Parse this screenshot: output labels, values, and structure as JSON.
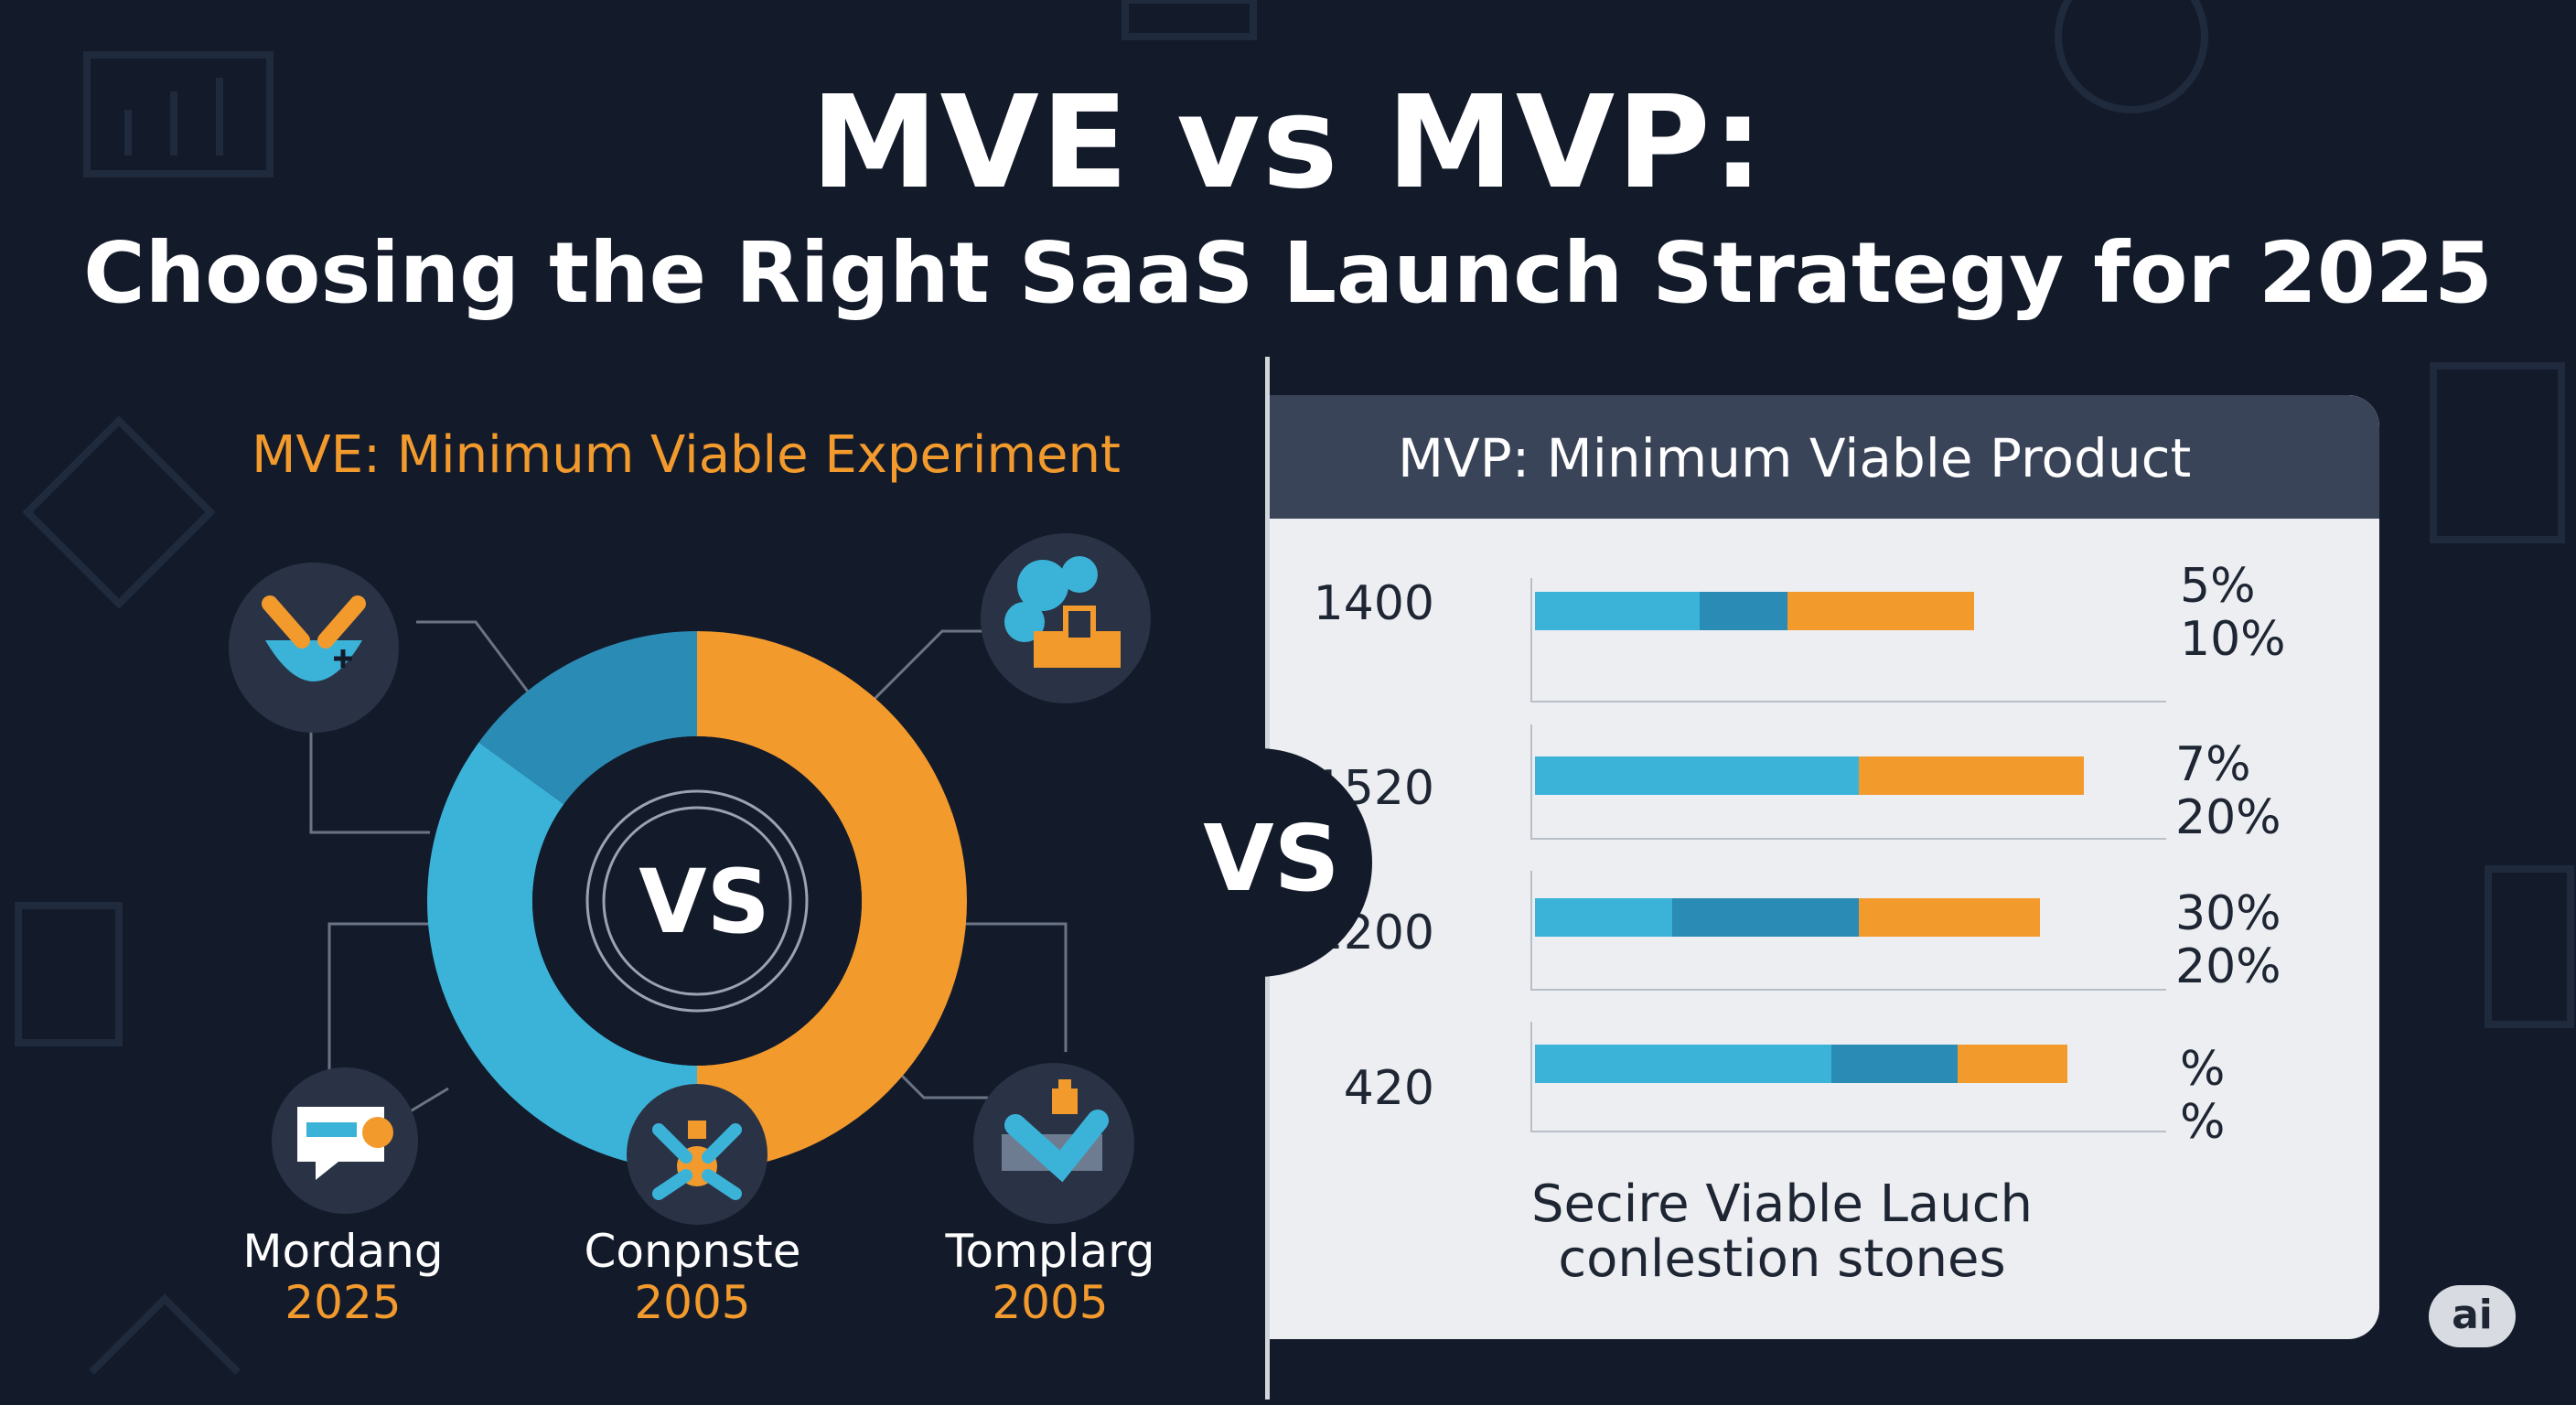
{
  "header": {
    "title": "MVE vs MVP:",
    "subtitle": "Choosing the Right SaaS Launch Strategy for 2025"
  },
  "mve": {
    "heading": "MVE: Minimum Viable Experiment",
    "center_label": "VS",
    "nodes": [
      {
        "icon": "bowl-icon"
      },
      {
        "icon": "puzzle-gear-icon"
      },
      {
        "icon": "chat-bubble-icon",
        "name": "Mordang",
        "year": "2025"
      },
      {
        "icon": "network-icon",
        "name": "Conpnste",
        "year": "2005"
      },
      {
        "icon": "puzzle-piece-icon",
        "name": "Tomplarg",
        "year": "2005"
      }
    ]
  },
  "mvp": {
    "heading": "MVP: Minimum Viable Product",
    "caption_line1": "Secire Viable Lauch",
    "caption_line2": "conlestion stones"
  },
  "vs_badge": "VS",
  "ai_badge": "ai",
  "colors": {
    "background": "#131b2b",
    "blue": "#3bb3d9",
    "blue_dark": "#2a8bb5",
    "orange": "#f39a2d",
    "orange_dark": "#ee8a24",
    "panel": "#eceef1",
    "panel_header": "#3a4459"
  },
  "chart_data": [
    {
      "type": "pie",
      "variant": "donut",
      "title": "",
      "slices": [
        {
          "label": "",
          "value": 50,
          "color": "#f39a2d"
        },
        {
          "label": "",
          "value": 35,
          "color": "#3bb3d9"
        },
        {
          "label": "",
          "value": 15,
          "color": "#2a8bb5"
        }
      ]
    },
    {
      "type": "bar",
      "orientation": "horizontal",
      "stacked": true,
      "title": "",
      "categories": [
        "1400",
        "1520",
        "2200",
        "420"
      ],
      "series": [
        {
          "values": [
            30,
            59,
            25,
            54
          ],
          "color": "#3bb3d9"
        },
        {
          "values": [
            16,
            0,
            34,
            23
          ],
          "color": "#2a8bb5"
        },
        {
          "values": [
            34,
            41,
            33,
            20
          ],
          "color": "#f39a2d"
        }
      ],
      "xlim": [
        0,
        100
      ],
      "annotations": [
        [
          "5%",
          "10%"
        ],
        [
          "7%",
          "20%"
        ],
        [
          "30%",
          "20%"
        ],
        [
          "%",
          "%"
        ]
      ]
    }
  ]
}
